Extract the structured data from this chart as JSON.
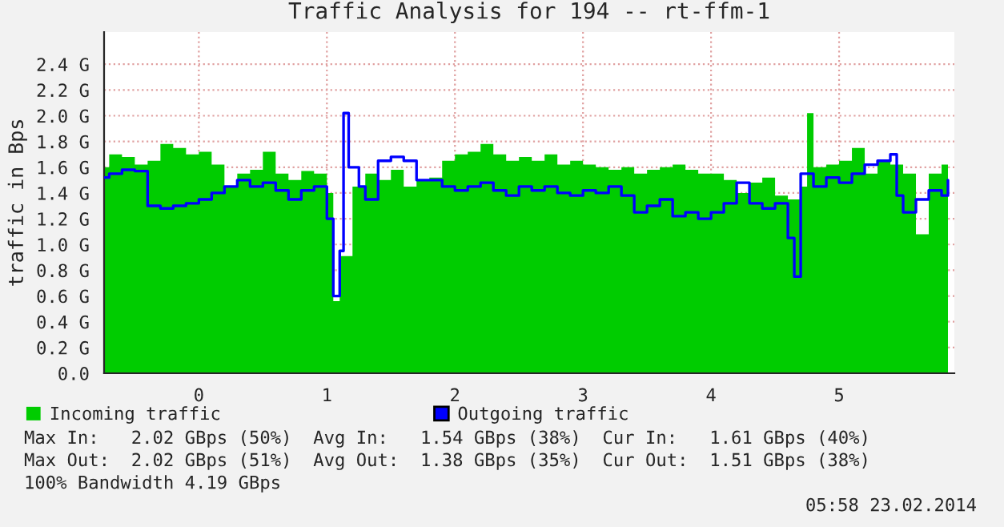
{
  "chart_data": {
    "type": "area",
    "title": "Traffic Analysis for 194 -- rt-ffm-1",
    "ylabel": "traffic in Bps",
    "xlim": [
      -0.74,
      5.9
    ],
    "ylim": [
      0,
      2.65
    ],
    "xticks": [
      0,
      1,
      2,
      3,
      4,
      5
    ],
    "yticks": [
      {
        "value": 0,
        "label": "0.0"
      },
      {
        "value": 0.2,
        "label": "0.2 G"
      },
      {
        "value": 0.4,
        "label": "0.4 G"
      },
      {
        "value": 0.6,
        "label": "0.6 G"
      },
      {
        "value": 0.8,
        "label": "0.8 G"
      },
      {
        "value": 1.0,
        "label": "1.0 G"
      },
      {
        "value": 1.2,
        "label": "1.2 G"
      },
      {
        "value": 1.4,
        "label": "1.4 G"
      },
      {
        "value": 1.6,
        "label": "1.6 G"
      },
      {
        "value": 1.8,
        "label": "1.8 G"
      },
      {
        "value": 2.0,
        "label": "2.0 G"
      },
      {
        "value": 2.2,
        "label": "2.2 G"
      },
      {
        "value": 2.4,
        "label": "2.4 G"
      }
    ],
    "grid": true,
    "legend": "bottom",
    "series": [
      {
        "name": "Incoming traffic",
        "type": "area",
        "color": "#00cc00",
        "x": [
          -0.74,
          -0.7,
          -0.6,
          -0.5,
          -0.4,
          -0.3,
          -0.2,
          -0.1,
          0,
          0.1,
          0.2,
          0.3,
          0.4,
          0.5,
          0.6,
          0.7,
          0.8,
          0.9,
          1.0,
          1.05,
          1.1,
          1.2,
          1.3,
          1.4,
          1.5,
          1.6,
          1.7,
          1.8,
          1.9,
          2.0,
          2.1,
          2.2,
          2.3,
          2.4,
          2.5,
          2.6,
          2.7,
          2.8,
          2.9,
          3.0,
          3.1,
          3.2,
          3.3,
          3.4,
          3.5,
          3.6,
          3.7,
          3.8,
          3.9,
          4.0,
          4.1,
          4.2,
          4.3,
          4.4,
          4.5,
          4.6,
          4.7,
          4.75,
          4.8,
          4.9,
          5.0,
          5.1,
          5.2,
          5.3,
          5.4,
          5.5,
          5.6,
          5.7,
          5.8,
          5.85
        ],
        "values": [
          1.6,
          1.7,
          1.68,
          1.62,
          1.65,
          1.78,
          1.75,
          1.7,
          1.72,
          1.62,
          1.45,
          1.55,
          1.58,
          1.72,
          1.55,
          1.5,
          1.57,
          1.55,
          1.4,
          0.56,
          0.91,
          1.45,
          1.55,
          1.5,
          1.58,
          1.45,
          1.5,
          1.52,
          1.65,
          1.7,
          1.72,
          1.78,
          1.7,
          1.65,
          1.68,
          1.65,
          1.7,
          1.62,
          1.65,
          1.62,
          1.6,
          1.58,
          1.6,
          1.55,
          1.58,
          1.6,
          1.62,
          1.58,
          1.55,
          1.55,
          1.5,
          1.4,
          1.48,
          1.52,
          1.38,
          1.35,
          1.45,
          2.02,
          1.6,
          1.62,
          1.65,
          1.75,
          1.55,
          1.65,
          1.62,
          1.55,
          1.08,
          1.55,
          1.62,
          1.7
        ]
      },
      {
        "name": "Outgoing traffic",
        "type": "step",
        "color": "#0000ff",
        "x": [
          -0.74,
          -0.7,
          -0.6,
          -0.5,
          -0.4,
          -0.3,
          -0.2,
          -0.1,
          0,
          0.1,
          0.2,
          0.3,
          0.4,
          0.5,
          0.6,
          0.7,
          0.8,
          0.9,
          1.0,
          1.05,
          1.1,
          1.13,
          1.17,
          1.25,
          1.3,
          1.4,
          1.5,
          1.6,
          1.7,
          1.8,
          1.9,
          2.0,
          2.1,
          2.2,
          2.3,
          2.4,
          2.5,
          2.6,
          2.7,
          2.8,
          2.9,
          3.0,
          3.1,
          3.2,
          3.3,
          3.4,
          3.5,
          3.6,
          3.7,
          3.8,
          3.9,
          4.0,
          4.1,
          4.2,
          4.3,
          4.4,
          4.5,
          4.6,
          4.65,
          4.7,
          4.8,
          4.9,
          5.0,
          5.1,
          5.2,
          5.3,
          5.4,
          5.45,
          5.5,
          5.6,
          5.7,
          5.8,
          5.85
        ],
        "values": [
          1.52,
          1.55,
          1.58,
          1.57,
          1.3,
          1.28,
          1.3,
          1.32,
          1.35,
          1.4,
          1.45,
          1.5,
          1.45,
          1.48,
          1.42,
          1.35,
          1.42,
          1.45,
          1.2,
          0.6,
          0.95,
          2.02,
          1.6,
          1.45,
          1.35,
          1.65,
          1.68,
          1.65,
          1.5,
          1.5,
          1.45,
          1.42,
          1.45,
          1.48,
          1.42,
          1.38,
          1.45,
          1.42,
          1.45,
          1.4,
          1.38,
          1.42,
          1.4,
          1.45,
          1.38,
          1.25,
          1.3,
          1.35,
          1.22,
          1.25,
          1.2,
          1.25,
          1.32,
          1.48,
          1.32,
          1.28,
          1.32,
          1.05,
          0.75,
          1.55,
          1.45,
          1.52,
          1.48,
          1.55,
          1.62,
          1.65,
          1.7,
          1.38,
          1.25,
          1.35,
          1.42,
          1.38,
          1.5
        ]
      }
    ],
    "annotations": [
      "Max In:   2.02 GBps (50%)  Avg In:   1.54 GBps (38%)  Cur In:   1.61 GBps (40%)",
      "Max Out:  2.02 GBps (51%)  Avg Out:  1.38 GBps (35%)  Cur Out:  1.51 GBps (38%)",
      "100% Bandwidth 4.19 GBps",
      "05:58 23.02.2014"
    ]
  }
}
